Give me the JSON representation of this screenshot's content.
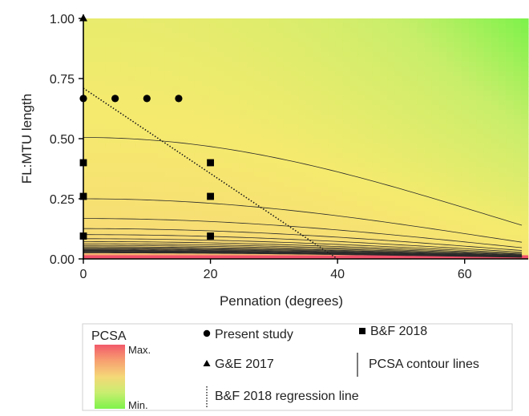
{
  "chart_data": {
    "type": "heatmap",
    "xlabel": "Pennation (degrees)",
    "ylabel": "FL:MTU length",
    "xlim": [
      0,
      70
    ],
    "ylim": [
      0,
      1.0
    ],
    "x_ticks": [
      0,
      20,
      40,
      60
    ],
    "x_tick_labels": [
      "0",
      "20",
      "40",
      "60"
    ],
    "y_ticks": [
      0.0,
      0.25,
      0.5,
      0.75,
      1.0
    ],
    "y_tick_labels": [
      "0.00",
      "0.25",
      "0.50",
      "0.75",
      "1.00"
    ],
    "colorbar": {
      "title": "PCSA",
      "max_label": "Max.",
      "min_label": "Min.",
      "colors": [
        "#f25a6a",
        "#f7a070",
        "#f5d878",
        "#c8ee70",
        "#7ef24a"
      ]
    },
    "series": [
      {
        "name": "Present study",
        "marker": "circle",
        "points": [
          [
            0,
            0.667
          ],
          [
            5,
            0.667
          ],
          [
            10,
            0.667
          ],
          [
            15,
            0.667
          ]
        ]
      },
      {
        "name": "B&F 2018",
        "marker": "square",
        "points": [
          [
            0,
            0.4
          ],
          [
            0,
            0.26
          ],
          [
            0,
            0.095
          ],
          [
            20,
            0.4
          ],
          [
            20,
            0.26
          ],
          [
            20,
            0.095
          ]
        ]
      },
      {
        "name": "G&E 2017",
        "marker": "triangle",
        "points": [
          [
            0,
            1.0
          ]
        ]
      }
    ],
    "regression_line": {
      "name": "B&F 2018 regression line",
      "x": [
        0,
        40
      ],
      "y": [
        0.71,
        0.0
      ]
    },
    "contour_lines": {
      "name": "PCSA contour lines",
      "start_values": [
        0.505,
        0.25,
        0.168,
        0.126,
        0.101,
        0.084,
        0.072,
        0.063,
        0.056,
        0.05,
        0.046,
        0.042,
        0.039,
        0.036,
        0.034,
        0.032,
        0.03,
        0.028,
        0.027,
        0.025
      ]
    },
    "legend": {
      "position": "bottom",
      "items": [
        "Present study",
        "B&F 2018",
        "G&E 2017",
        "PCSA contour lines",
        "B&F 2018 regression line"
      ]
    }
  }
}
